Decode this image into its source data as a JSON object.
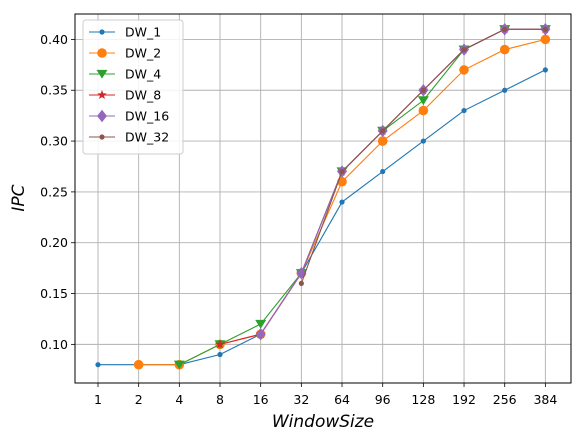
{
  "chart_data": {
    "type": "line",
    "categories": [
      "1",
      "2",
      "4",
      "8",
      "16",
      "32",
      "64",
      "96",
      "128",
      "192",
      "256",
      "384"
    ],
    "xlabel": "WindowSize",
    "ylabel": "IPC",
    "ylim": [
      0.062,
      0.425
    ],
    "yticks": [
      "0.10",
      "0.15",
      "0.20",
      "0.25",
      "0.30",
      "0.35",
      "0.40"
    ],
    "grid": true,
    "legend_position": "top-left",
    "series": [
      {
        "name": "DW_1",
        "color": "#1f77b4",
        "marker": "point",
        "values": [
          0.08,
          0.08,
          0.08,
          0.09,
          0.11,
          0.17,
          0.24,
          0.27,
          0.3,
          0.33,
          0.35,
          0.37
        ]
      },
      {
        "name": "DW_2",
        "color": "#ff7f0e",
        "marker": "circle",
        "values": [
          null,
          0.08,
          0.08,
          0.1,
          0.11,
          0.17,
          0.26,
          0.3,
          0.33,
          0.37,
          0.39,
          0.4
        ]
      },
      {
        "name": "DW_4",
        "color": "#2ca02c",
        "marker": "triangle-down",
        "values": [
          null,
          null,
          0.08,
          0.1,
          0.12,
          0.17,
          0.27,
          0.31,
          0.34,
          0.39,
          0.41,
          0.41
        ]
      },
      {
        "name": "DW_8",
        "color": "#d62728",
        "marker": "star",
        "values": [
          null,
          null,
          null,
          0.1,
          0.11,
          0.17,
          0.27,
          0.31,
          0.35,
          0.39,
          0.41,
          0.41
        ]
      },
      {
        "name": "DW_16",
        "color": "#9467bd",
        "marker": "diamond",
        "values": [
          null,
          null,
          null,
          null,
          0.11,
          0.17,
          0.27,
          0.31,
          0.35,
          0.39,
          0.41,
          0.41
        ]
      },
      {
        "name": "DW_32",
        "color": "#8c564b",
        "marker": "point",
        "values": [
          null,
          null,
          null,
          null,
          null,
          0.16,
          0.27,
          0.31,
          0.35,
          0.39,
          0.41,
          0.41
        ]
      }
    ]
  }
}
